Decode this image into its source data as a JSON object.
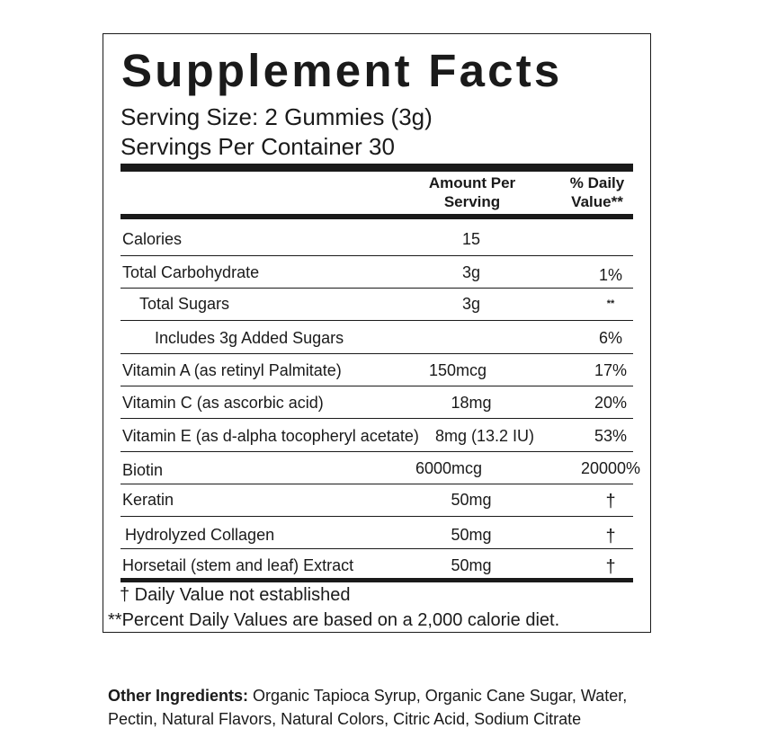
{
  "facts": {
    "title": "Supplement Facts",
    "serving_size": "Serving Size: 2 Gummies (3g)",
    "servings_per_container": "Servings Per Container 30",
    "header": {
      "amount_line1": "Amount Per",
      "amount_line2": "Serving",
      "dv_line1": "% Daily",
      "dv_line2": "Value**"
    },
    "rows": [
      {
        "name": "Calories",
        "amount": "15",
        "dv": ""
      },
      {
        "name": "Total Carbohydrate",
        "amount": "3g",
        "dv": "1%"
      },
      {
        "name": "Total Sugars",
        "amount": "3g",
        "dv": "**"
      },
      {
        "name": "Includes 3g Added Sugars",
        "amount": "",
        "dv": "6%"
      },
      {
        "name": "Vitamin A (as retinyl Palmitate)",
        "amount": "150mcg",
        "dv": "17%"
      },
      {
        "name": "Vitamin C (as ascorbic acid)",
        "amount": "18mg",
        "dv": "20%"
      },
      {
        "name": "Vitamin E (as d-alpha tocopheryl acetate)",
        "amount": "8mg (13.2 IU)",
        "dv": "53%"
      },
      {
        "name": "Biotin",
        "amount": "6000mcg",
        "dv": "20000%"
      },
      {
        "name": "Keratin",
        "amount": "50mg",
        "dv": "†"
      },
      {
        "name": "Hydrolyzed Collagen",
        "amount": "50mg",
        "dv": "†"
      },
      {
        "name": "Horsetail (stem and leaf) Extract",
        "amount": "50mg",
        "dv": "†"
      }
    ],
    "footnote_dagger": "† Daily Value not established",
    "footnote_percent": "**Percent Daily Values are based on a 2,000 calorie diet."
  },
  "other_ingredients": {
    "label": "Other Ingredients:",
    "text": " Organic Tapioca Syrup, Organic Cane Sugar, Water, Pectin, Natural Flavors, Natural Colors, Citric Acid, Sodium Citrate"
  }
}
